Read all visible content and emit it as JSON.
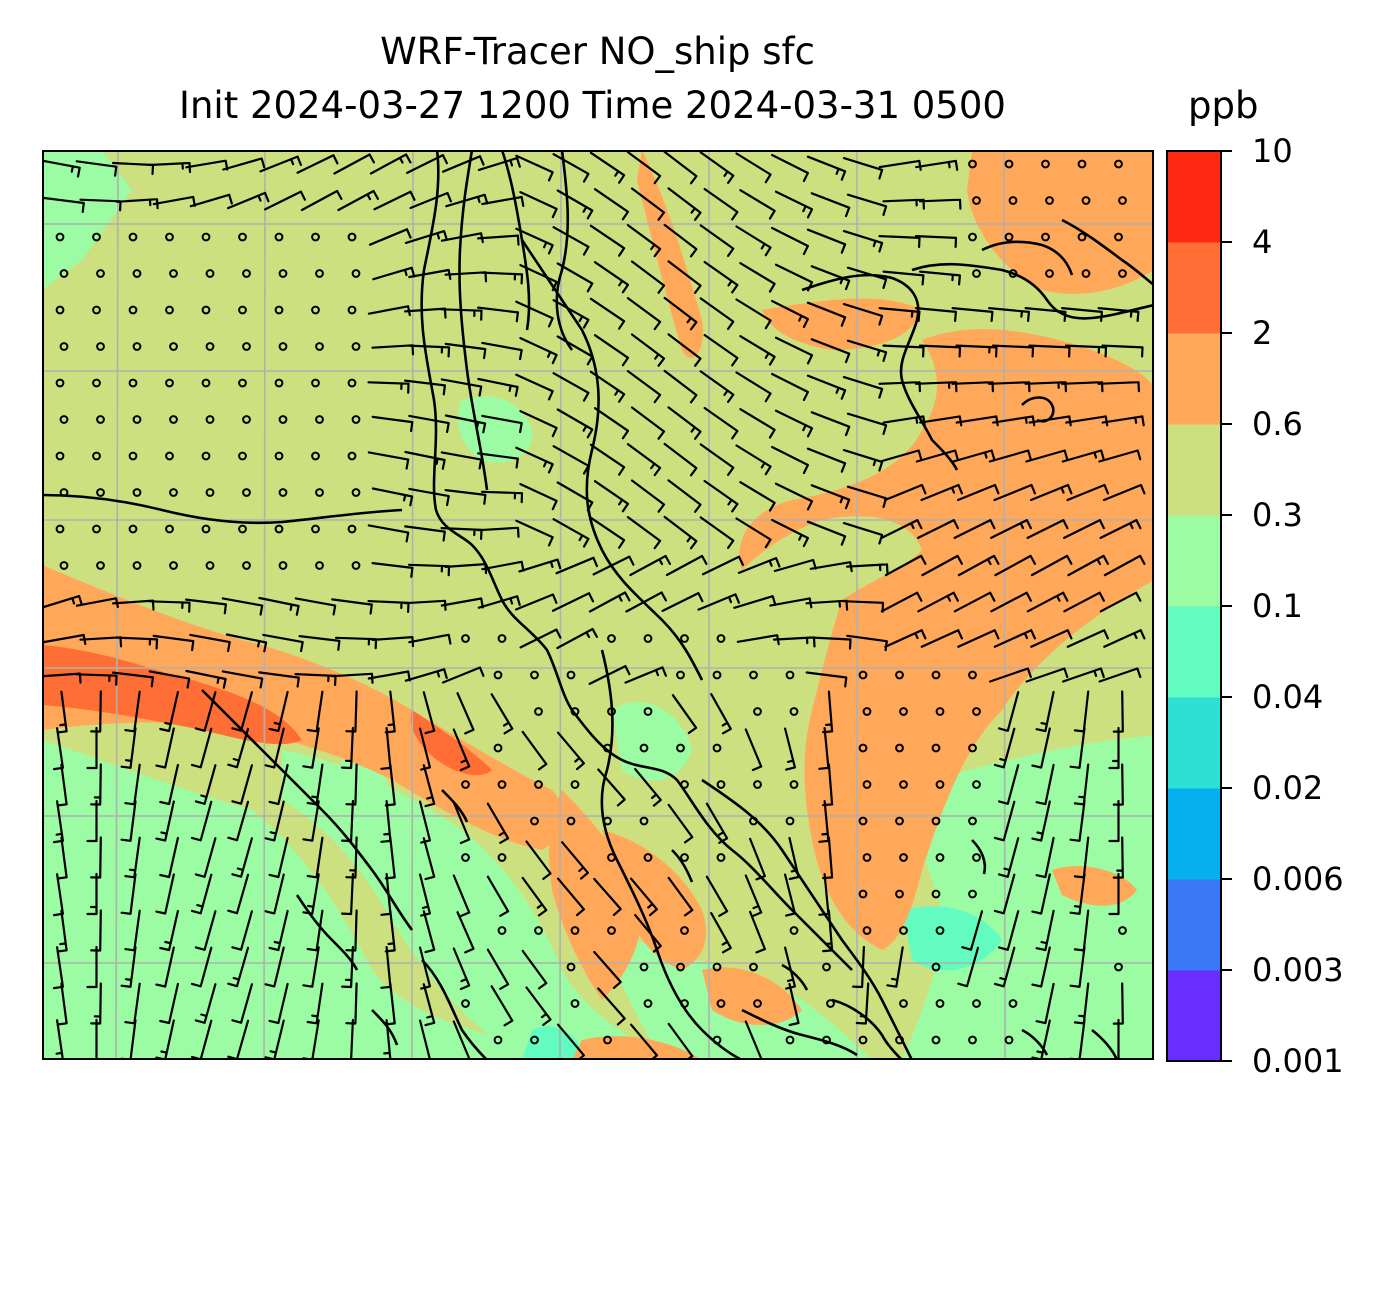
{
  "title": {
    "line1": "WRF-Tracer NO_ship sfc",
    "line2": "Init 2024-03-27 1200 Time 2024-03-31 0500"
  },
  "colorbar": {
    "units": "ppb",
    "levels": [
      "0.001",
      "0.003",
      "0.006",
      "0.02",
      "0.04",
      "0.1",
      "0.3",
      "0.6",
      "2",
      "4",
      "10"
    ],
    "colors": [
      "#6a2cff",
      "#3a78f7",
      "#06b0ee",
      "#2ee0d4",
      "#62fcc0",
      "#9cfca4",
      "#cde080",
      "#ffa85a",
      "#ff6e34",
      "#ff2812"
    ]
  },
  "map": {
    "field_colors": {
      "background": "#cde080",
      "high": "#ffa85a",
      "highest": "#ff6e34",
      "low": "#9cfca4",
      "lowest": "#62fcc0"
    },
    "gridline_color": "#b0b0b0",
    "coastline_color": "#000000",
    "wind_marker": "wind-barbs-and-calm-circles"
  }
}
